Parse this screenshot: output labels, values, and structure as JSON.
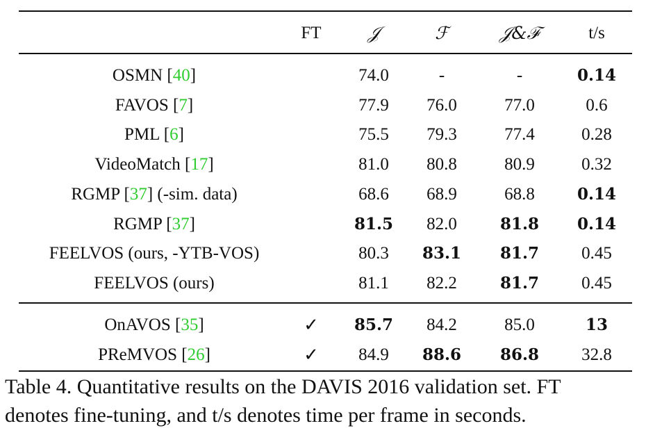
{
  "table": {
    "headers": {
      "method": "",
      "ft": "FT",
      "j": "𝒥",
      "f": "ℱ",
      "jf": "𝒥&ℱ",
      "t": "t/s"
    },
    "rows_group1": [
      {
        "name": "OSMN [",
        "ref": "40",
        "suffix": "]",
        "ft": "",
        "j": "74.0",
        "f": "-",
        "jf": "-",
        "t": "0.14",
        "bold": {
          "j": false,
          "f": false,
          "jf": false,
          "t": true
        }
      },
      {
        "name": "FAVOS [",
        "ref": "7",
        "suffix": "]",
        "ft": "",
        "j": "77.9",
        "f": "76.0",
        "jf": "77.0",
        "t": "0.6",
        "bold": {
          "j": false,
          "f": false,
          "jf": false,
          "t": false
        }
      },
      {
        "name": "PML [",
        "ref": "6",
        "suffix": "]",
        "ft": "",
        "j": "75.5",
        "f": "79.3",
        "jf": "77.4",
        "t": "0.28",
        "bold": {
          "j": false,
          "f": false,
          "jf": false,
          "t": false
        }
      },
      {
        "name": "VideoMatch [",
        "ref": "17",
        "suffix": "]",
        "ft": "",
        "j": "81.0",
        "f": "80.8",
        "jf": "80.9",
        "t": "0.32",
        "bold": {
          "j": false,
          "f": false,
          "jf": false,
          "t": false
        }
      },
      {
        "name": "RGMP [",
        "ref": "37",
        "suffix": "] (-sim. data)",
        "ft": "",
        "j": "68.6",
        "f": "68.9",
        "jf": "68.8",
        "t": "0.14",
        "bold": {
          "j": false,
          "f": false,
          "jf": false,
          "t": true
        }
      },
      {
        "name": "RGMP [",
        "ref": "37",
        "suffix": "]",
        "ft": "",
        "j": "81.5",
        "f": "82.0",
        "jf": "81.8",
        "t": "0.14",
        "bold": {
          "j": true,
          "f": false,
          "jf": true,
          "t": true
        }
      },
      {
        "name": "FEELVOS (ours, -YTB-VOS)",
        "ref": "",
        "suffix": "",
        "ft": "",
        "j": "80.3",
        "f": "83.1",
        "jf": "81.7",
        "t": "0.45",
        "bold": {
          "j": false,
          "f": true,
          "jf": true,
          "t": false
        }
      },
      {
        "name": "FEELVOS (ours)",
        "ref": "",
        "suffix": "",
        "ft": "",
        "j": "81.1",
        "f": "82.2",
        "jf": "81.7",
        "t": "0.45",
        "bold": {
          "j": false,
          "f": false,
          "jf": true,
          "t": false
        }
      }
    ],
    "rows_group2": [
      {
        "name": "OnAVOS [",
        "ref": "35",
        "suffix": "]",
        "ft": "✓",
        "j": "85.7",
        "f": "84.2",
        "jf": "85.0",
        "t": "13",
        "bold": {
          "j": true,
          "f": false,
          "jf": false,
          "t": true
        }
      },
      {
        "name": "PReMVOS [",
        "ref": "26",
        "suffix": "]",
        "ft": "✓",
        "j": "84.9",
        "f": "88.6",
        "jf": "86.8",
        "t": "32.8",
        "bold": {
          "j": false,
          "f": true,
          "jf": true,
          "t": false
        }
      }
    ]
  },
  "caption": {
    "line1": "Table 4. Quantitative results on the DAVIS 2016 validation set. FT",
    "line2": "denotes fine-tuning, and t/s denotes time per frame in seconds."
  },
  "colors": {
    "reference": "#2ecc2e",
    "text": "#111111"
  }
}
